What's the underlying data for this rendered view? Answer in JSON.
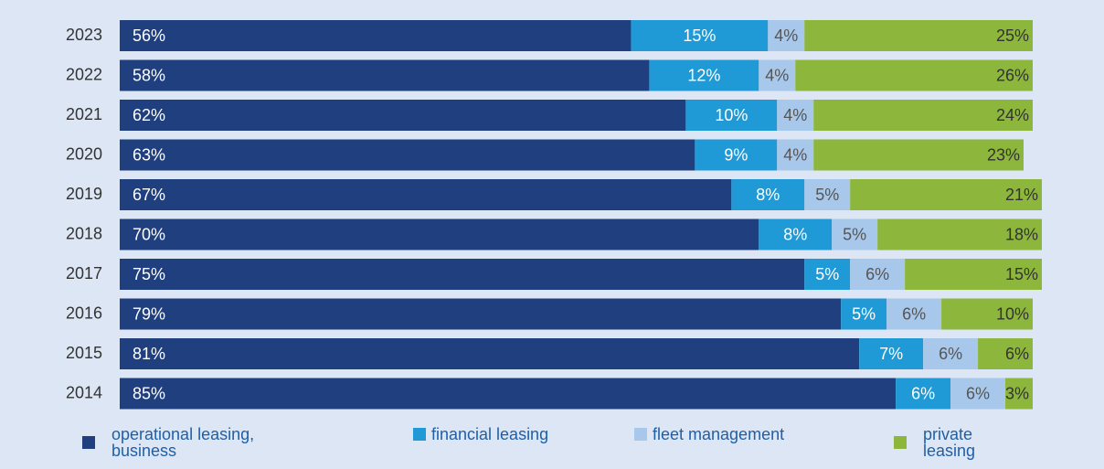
{
  "chart_data": {
    "type": "stacked_bar_horizontal",
    "categories": [
      "2023",
      "2022",
      "2021",
      "2020",
      "2019",
      "2018",
      "2017",
      "2016",
      "2015",
      "2014"
    ],
    "series": [
      {
        "name": "operational leasing, business",
        "color": "#203f7f",
        "values": [
          56,
          58,
          62,
          63,
          67,
          70,
          75,
          79,
          81,
          85
        ],
        "value_labels": [
          "56%",
          "58%",
          "62%",
          "63%",
          "67%",
          "70%",
          "75%",
          "79%",
          "81%",
          "85%"
        ]
      },
      {
        "name": "financial leasing",
        "color": "#1f9ad7",
        "values": [
          15,
          12,
          10,
          9,
          8,
          8,
          5,
          5,
          7,
          6
        ],
        "value_labels": [
          "15%",
          "12%",
          "10%",
          "9%",
          "8%",
          "8%",
          "5%",
          "5%",
          "7%",
          "6%"
        ]
      },
      {
        "name": "fleet management",
        "color": "#a7c8ea",
        "values": [
          4,
          4,
          4,
          4,
          5,
          5,
          6,
          6,
          6,
          6
        ],
        "value_labels": [
          "4%",
          "4%",
          "4%",
          "4%",
          "5%",
          "5%",
          "6%",
          "6%",
          "6%",
          "6%"
        ]
      },
      {
        "name": "private leasing",
        "color": "#8db63c",
        "values": [
          25,
          26,
          24,
          23,
          21,
          18,
          15,
          10,
          6,
          3
        ],
        "value_labels": [
          "25%",
          "26%",
          "24%",
          "23%",
          "21%",
          "18%",
          "15%",
          "10%",
          "6%",
          "3%"
        ]
      }
    ],
    "xlim": [
      0,
      100
    ]
  }
}
